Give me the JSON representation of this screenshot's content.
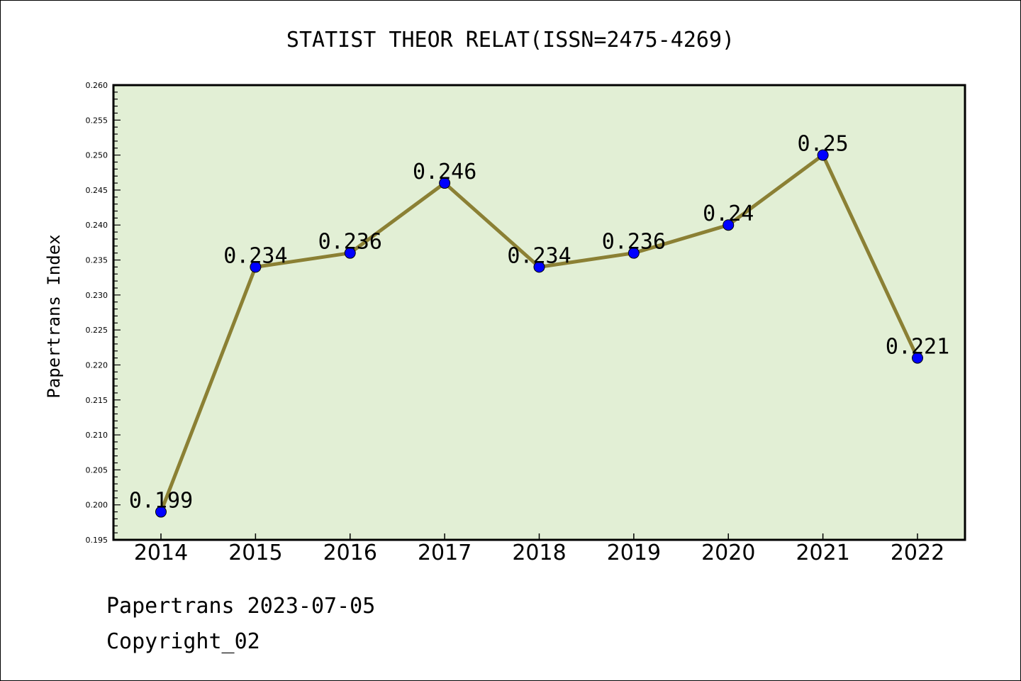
{
  "chart_data": {
    "type": "line",
    "title": "STATIST THEOR RELAT(ISSN=2475-4269)",
    "ylabel": "Papertrans Index",
    "xlabel": "",
    "categories": [
      "2014",
      "2015",
      "2016",
      "2017",
      "2018",
      "2019",
      "2020",
      "2021",
      "2022"
    ],
    "values": [
      0.199,
      0.234,
      0.236,
      0.246,
      0.234,
      0.236,
      0.24,
      0.25,
      0.221
    ],
    "data_labels": [
      "0.199",
      "0.234",
      "0.236",
      "0.246",
      "0.234",
      "0.236",
      "0.24",
      "0.25",
      "0.221"
    ],
    "ylim": [
      0.195,
      0.26
    ],
    "yticks": [
      "0.195",
      "0.200",
      "0.205",
      "0.210",
      "0.215",
      "0.220",
      "0.225",
      "0.230",
      "0.235",
      "0.240",
      "0.245",
      "0.250",
      "0.255",
      "0.260"
    ],
    "grid": false,
    "legend": "none",
    "colors": {
      "plot_background": "#e2efd5",
      "line": "#8b8034",
      "marker": "#0000ff"
    }
  },
  "footer": {
    "source": "Papertrans 2023-07-05",
    "copyright": "Copyright_02"
  }
}
